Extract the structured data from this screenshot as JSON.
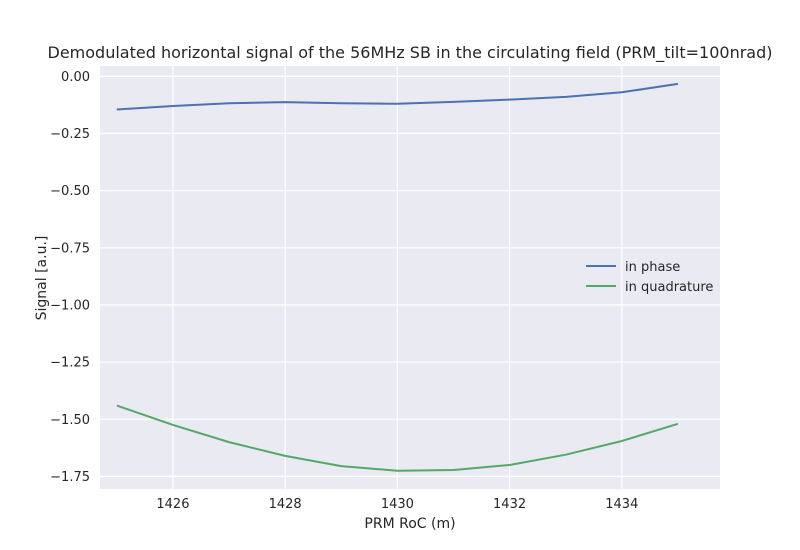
{
  "chart_data": {
    "type": "line",
    "title": "Demodulated horizontal signal of the 56MHz SB in the circulating field (PRM_tilt=100nrad)",
    "xlabel": "PRM RoC (m)",
    "ylabel": "Signal [a.u.]",
    "xlim": [
      1424.7,
      1435.75
    ],
    "ylim": [
      -1.805,
      0.045
    ],
    "xticks": [
      1426,
      1428,
      1430,
      1432,
      1434
    ],
    "xtick_labels": [
      "1426",
      "1428",
      "1430",
      "1432",
      "1434"
    ],
    "yticks": [
      0.0,
      -0.25,
      -0.5,
      -0.75,
      -1.0,
      -1.25,
      -1.5,
      -1.75
    ],
    "ytick_labels": [
      "0.00",
      "−0.25",
      "−0.50",
      "−0.75",
      "−1.00",
      "−1.25",
      "−1.50",
      "−1.75"
    ],
    "grid": true,
    "legend_position": "center-right",
    "x": [
      1425,
      1426,
      1427,
      1428,
      1429,
      1430,
      1431,
      1432,
      1433,
      1434,
      1435
    ],
    "series": [
      {
        "name": "in phase",
        "color": "#4c72b0",
        "values": [
          -0.145,
          -0.13,
          -0.118,
          -0.113,
          -0.118,
          -0.12,
          -0.112,
          -0.102,
          -0.09,
          -0.07,
          -0.033
        ]
      },
      {
        "name": "in quadrature",
        "color": "#55a868",
        "values": [
          -1.44,
          -1.525,
          -1.6,
          -1.66,
          -1.705,
          -1.725,
          -1.722,
          -1.7,
          -1.655,
          -1.595,
          -1.52
        ]
      }
    ]
  }
}
